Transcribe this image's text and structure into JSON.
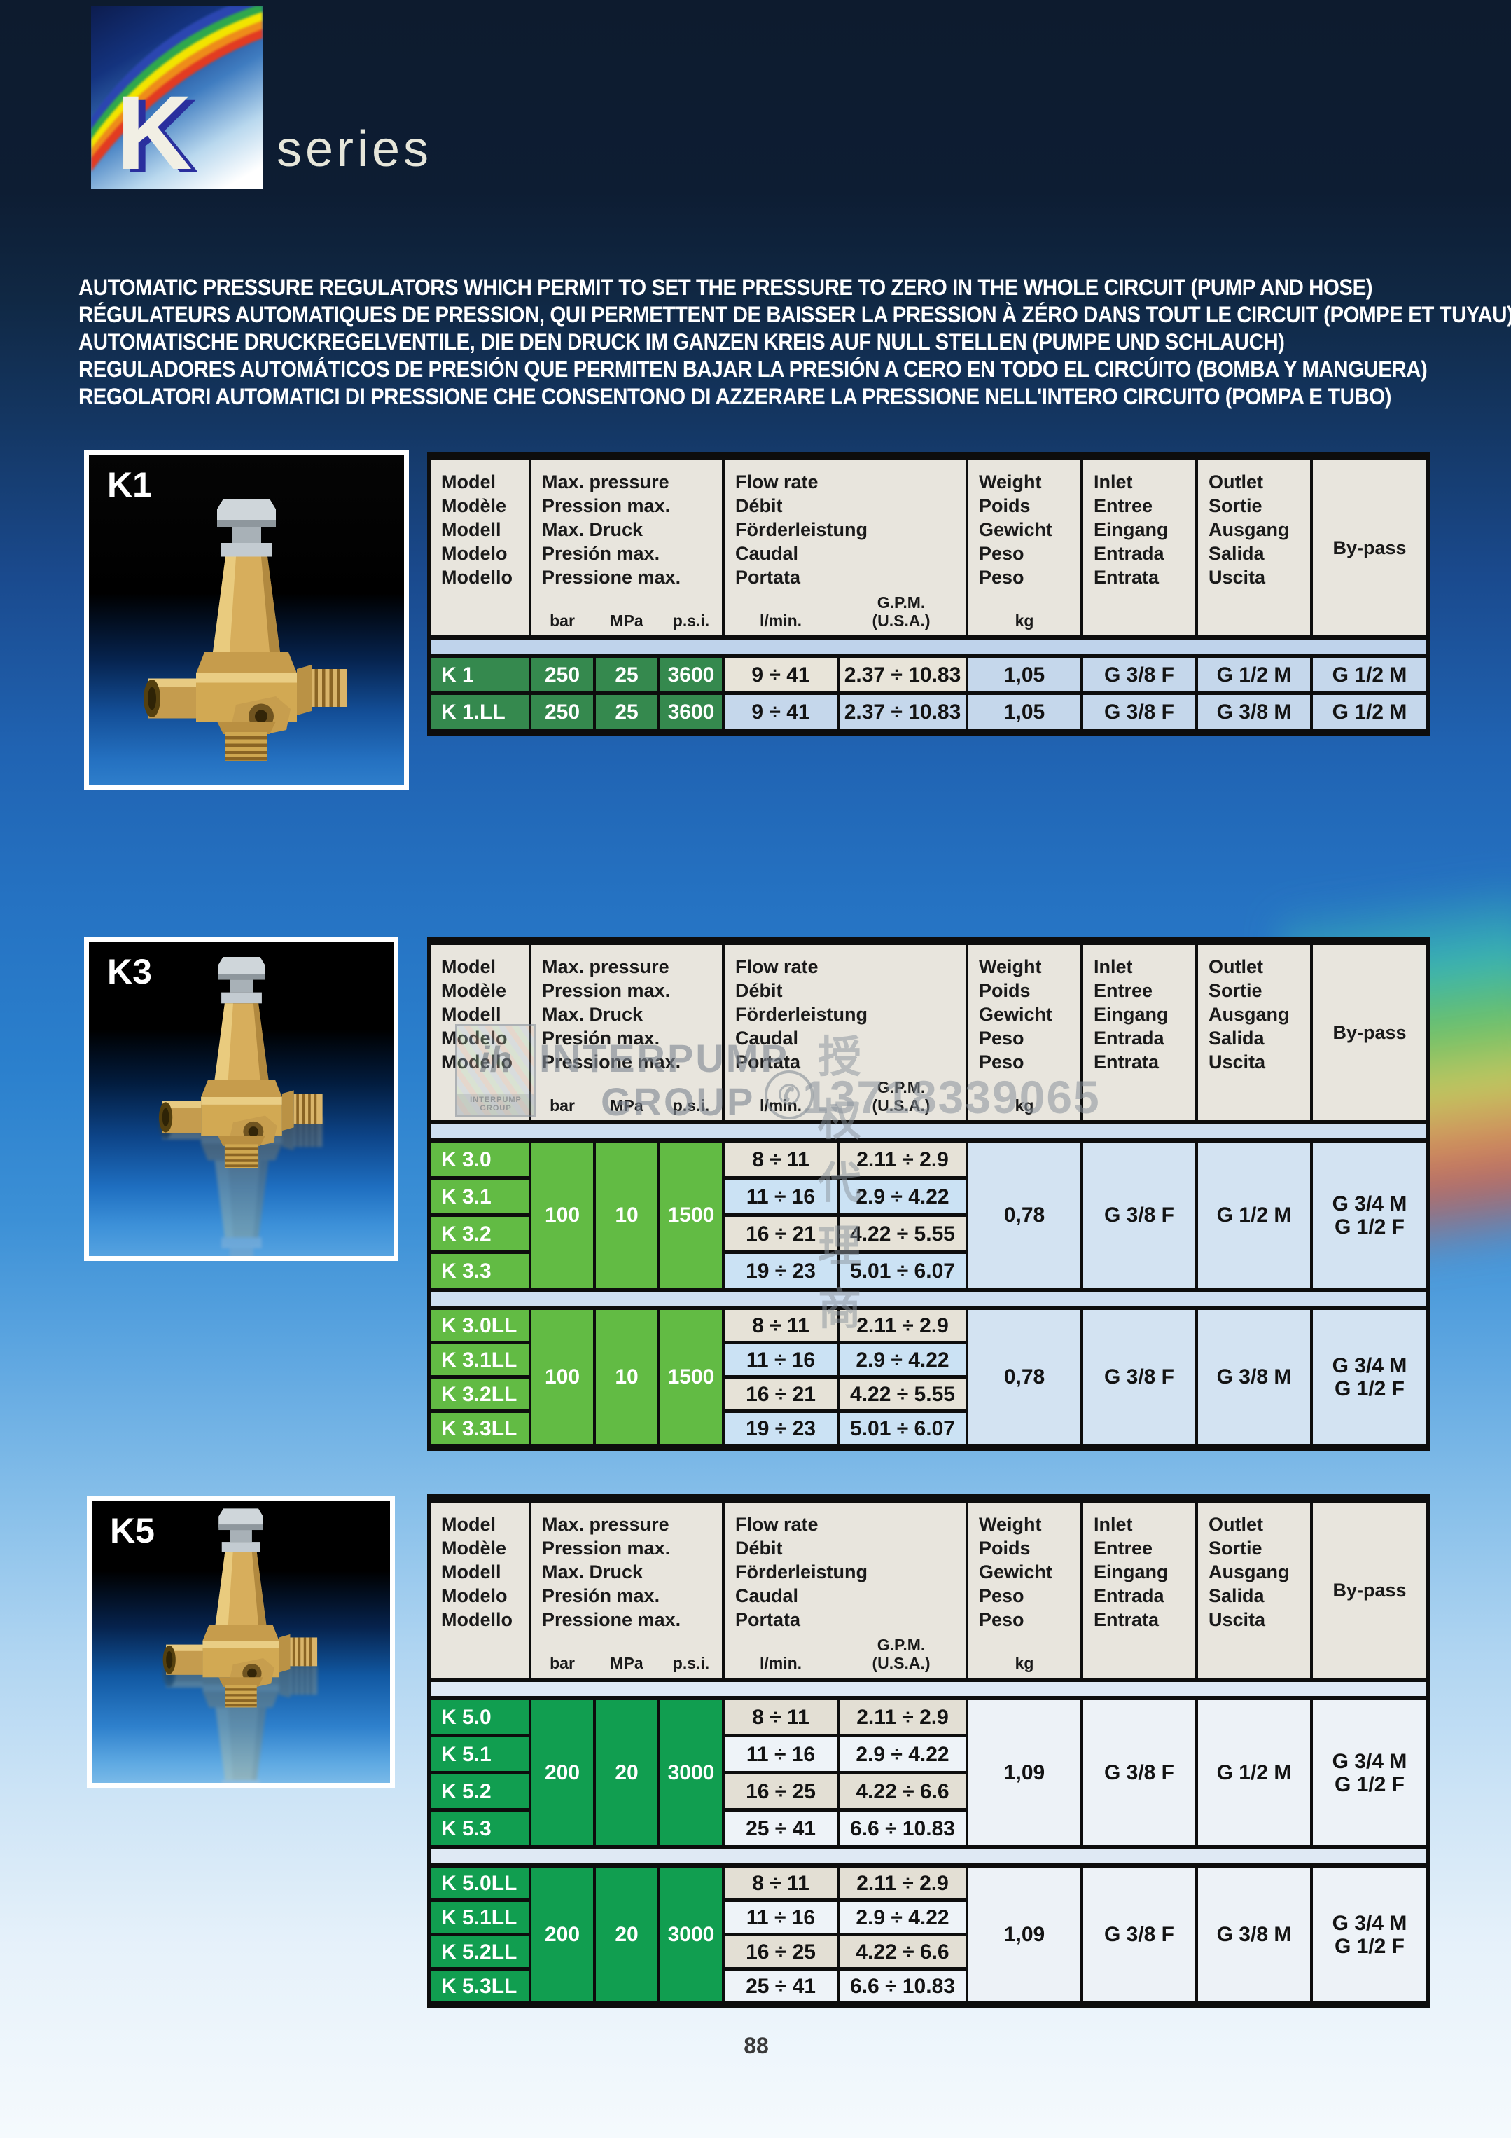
{
  "header": {
    "logo_letter": "K",
    "series_label": "series"
  },
  "description_lines": [
    "AUTOMATIC PRESSURE REGULATORS  WHICH PERMIT TO SET THE PRESSURE TO ZERO IN THE WHOLE CIRCUIT (PUMP AND HOSE)",
    "RÉGULATEURS AUTOMATIQUES DE PRESSION, QUI PERMETTENT DE BAISSER LA PRESSION À ZÉRO DANS TOUT LE CIRCUIT (POMPE ET TUYAU)",
    "AUTOMATISCHE DRUCKREGELVENTILE, DIE DEN DRUCK IM GANZEN KREIS AUF NULL STELLEN (PUMPE UND SCHLAUCH)",
    "REGULADORES AUTOMÁTICOS DE PRESIÓN  QUE PERMITEN BAJAR LA PRESIÓN A CERO EN TODO EL CIRCÚITO (BOMBA Y MANGUERA)",
    "REGOLATORI AUTOMATICI DI PRESSIONE CHE CONSENTONO DI AZZERARE LA PRESSIONE NELL'INTERO CIRCUITO (POMPA E TUBO)"
  ],
  "table_header": {
    "model_labels": [
      "Model",
      "Modèle",
      "Modell",
      "Modelo",
      "Modello"
    ],
    "pressure_labels": [
      "Max. pressure",
      "Pression max.",
      "Max. Druck",
      "Presión max.",
      "Pressione max."
    ],
    "flow_labels": [
      "Flow rate",
      "Débit",
      "Förderleistung",
      "Caudal",
      "Portata"
    ],
    "weight_labels": [
      "Weight",
      "Poids",
      "Gewicht",
      "Peso",
      "Peso"
    ],
    "inlet_labels": [
      "Inlet",
      "Entree",
      "Eingang",
      "Entrada",
      "Entrata"
    ],
    "outlet_labels": [
      "Outlet",
      "Sortie",
      "Ausgang",
      "Salida",
      "Uscita"
    ],
    "bypass_label": "By-pass",
    "units": {
      "bar": "bar",
      "mpa": "MPa",
      "psi": "p.s.i.",
      "lmin": "l/min.",
      "gpm_line1": "G.P.M.",
      "gpm_line2": "(U.S.A.)",
      "kg": "kg"
    }
  },
  "colors": {
    "header_bg": "#e8e5dd",
    "border_black": "#0d0d0d",
    "text_dark": "#131313",
    "text_white": "#ffffff"
  },
  "sections": [
    {
      "id": "k1",
      "photo_label": "K1",
      "colors": {
        "green": "#35894e",
        "cell": "#c5d7eb",
        "flow_beige": "#e8e4d9",
        "flow_alt": "#c5d7eb",
        "band": "#bfd3eb"
      },
      "groups": [
        {
          "merged": null,
          "rows": [
            {
              "model": "K 1",
              "bar": "250",
              "mpa": "25",
              "psi": "3600",
              "lmin": "9 ÷ 41",
              "gpm": "2.37 ÷ 10.83",
              "weight": "1,05",
              "inlet": "G 3/8 F",
              "outlet": "G 1/2 M",
              "bypass": "G 1/2 M",
              "flow_style": "beige"
            },
            {
              "model": "K 1.LL",
              "bar": "250",
              "mpa": "25",
              "psi": "3600",
              "lmin": "9 ÷ 41",
              "gpm": "2.37 ÷ 10.83",
              "weight": "1,05",
              "inlet": "G 3/8 F",
              "outlet": "G 3/8 M",
              "bypass": "G 1/2 M",
              "flow_style": "alt"
            }
          ]
        }
      ]
    },
    {
      "id": "k3",
      "photo_label": "K3",
      "colors": {
        "green": "#62bb44",
        "cell": "#d3e3f2",
        "flow_beige": "#e6e2d7",
        "flow_alt": "#cbe2f4",
        "band": "#cfdff1"
      },
      "watermark": {
        "logo_letters": "ih",
        "logo_caption": "INTERPUMP GROUP",
        "brand_line1": "INTERPUMP",
        "brand_line2": "GROUP",
        "phone_glyph": "✆",
        "chinese_text": "授权代理商",
        "phone_number": "13718339065"
      },
      "groups": [
        {
          "merged": {
            "bar": "100",
            "mpa": "10",
            "psi": "1500",
            "weight": "0,78",
            "inlet": "G 3/8 F",
            "outlet": "G 1/2 M",
            "bypass_lines": [
              "G 3/4 M",
              "G 1/2 F"
            ]
          },
          "rows": [
            {
              "model": "K 3.0",
              "lmin": "8 ÷ 11",
              "gpm": "2.11 ÷ 2.9",
              "flow_style": "beige"
            },
            {
              "model": "K 3.1",
              "lmin": "11 ÷ 16",
              "gpm": "2.9 ÷ 4.22",
              "flow_style": "alt"
            },
            {
              "model": "K 3.2",
              "lmin": "16 ÷ 21",
              "gpm": "4.22 ÷ 5.55",
              "flow_style": "beige"
            },
            {
              "model": "K 3.3",
              "lmin": "19 ÷ 23",
              "gpm": "5.01 ÷ 6.07",
              "flow_style": "alt"
            }
          ]
        },
        {
          "merged": {
            "bar": "100",
            "mpa": "10",
            "psi": "1500",
            "weight": "0,78",
            "inlet": "G 3/8 F",
            "outlet": "G 3/8 M",
            "bypass_lines": [
              "G 3/4 M",
              "G 1/2 F"
            ]
          },
          "rows": [
            {
              "model": "K 3.0LL",
              "lmin": "8 ÷ 11",
              "gpm": "2.11 ÷ 2.9",
              "flow_style": "beige"
            },
            {
              "model": "K 3.1LL",
              "lmin": "11 ÷ 16",
              "gpm": "2.9 ÷ 4.22",
              "flow_style": "alt"
            },
            {
              "model": "K 3.2LL",
              "lmin": "16 ÷ 21",
              "gpm": "4.22 ÷ 5.55",
              "flow_style": "beige"
            },
            {
              "model": "K 3.3LL",
              "lmin": "19 ÷ 23",
              "gpm": "5.01 ÷ 6.07",
              "flow_style": "alt"
            }
          ]
        }
      ]
    },
    {
      "id": "k5",
      "photo_label": "K5",
      "colors": {
        "green": "#119e50",
        "cell": "#edf2f7",
        "flow_beige": "#e3dfd4",
        "flow_alt": "#eef3f8",
        "band": "#dfe9f4"
      },
      "groups": [
        {
          "merged": {
            "bar": "200",
            "mpa": "20",
            "psi": "3000",
            "weight": "1,09",
            "inlet": "G 3/8 F",
            "outlet": "G 1/2 M",
            "bypass_lines": [
              "G 3/4 M",
              "G 1/2 F"
            ]
          },
          "rows": [
            {
              "model": "K 5.0",
              "lmin": "8 ÷ 11",
              "gpm": "2.11 ÷ 2.9",
              "flow_style": "beige"
            },
            {
              "model": "K 5.1",
              "lmin": "11 ÷ 16",
              "gpm": "2.9 ÷ 4.22",
              "flow_style": "alt"
            },
            {
              "model": "K 5.2",
              "lmin": "16 ÷ 25",
              "gpm": "4.22 ÷ 6.6",
              "flow_style": "beige"
            },
            {
              "model": "K 5.3",
              "lmin": "25 ÷ 41",
              "gpm": "6.6 ÷ 10.83",
              "flow_style": "alt"
            }
          ]
        },
        {
          "merged": {
            "bar": "200",
            "mpa": "20",
            "psi": "3000",
            "weight": "1,09",
            "inlet": "G 3/8 F",
            "outlet": "G 3/8 M",
            "bypass_lines": [
              "G 3/4 M",
              "G 1/2 F"
            ]
          },
          "rows": [
            {
              "model": "K 5.0LL",
              "lmin": "8 ÷ 11",
              "gpm": "2.11 ÷ 2.9",
              "flow_style": "beige"
            },
            {
              "model": "K 5.1LL",
              "lmin": "11 ÷ 16",
              "gpm": "2.9 ÷ 4.22",
              "flow_style": "alt"
            },
            {
              "model": "K 5.2LL",
              "lmin": "16 ÷ 25",
              "gpm": "4.22 ÷ 6.6",
              "flow_style": "beige"
            },
            {
              "model": "K 5.3LL",
              "lmin": "25 ÷ 41",
              "gpm": "6.6 ÷ 10.83",
              "flow_style": "alt"
            }
          ]
        }
      ]
    }
  ],
  "footer": {
    "page_number": "88"
  }
}
